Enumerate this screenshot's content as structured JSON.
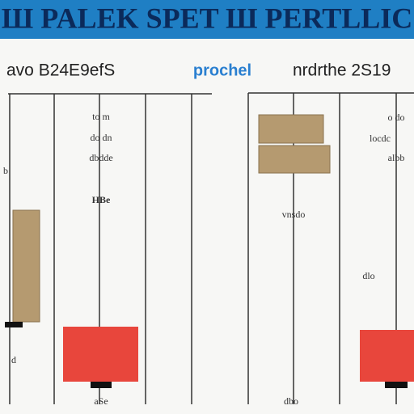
{
  "header": {
    "title": "Ш PALEK SPET Ш PERTLLIC"
  },
  "left_panel": {
    "heading": "avo B24E9efS",
    "link": "prochel",
    "labels": [
      "to m",
      "do dn",
      "dbdde",
      "HBe",
      "b",
      "d",
      "aSe"
    ]
  },
  "right_panel": {
    "heading": "nrdrthe 2S19",
    "labels": [
      "o do",
      "locdc",
      "albb",
      "vnsdo",
      "dlo",
      "dbo"
    ]
  }
}
